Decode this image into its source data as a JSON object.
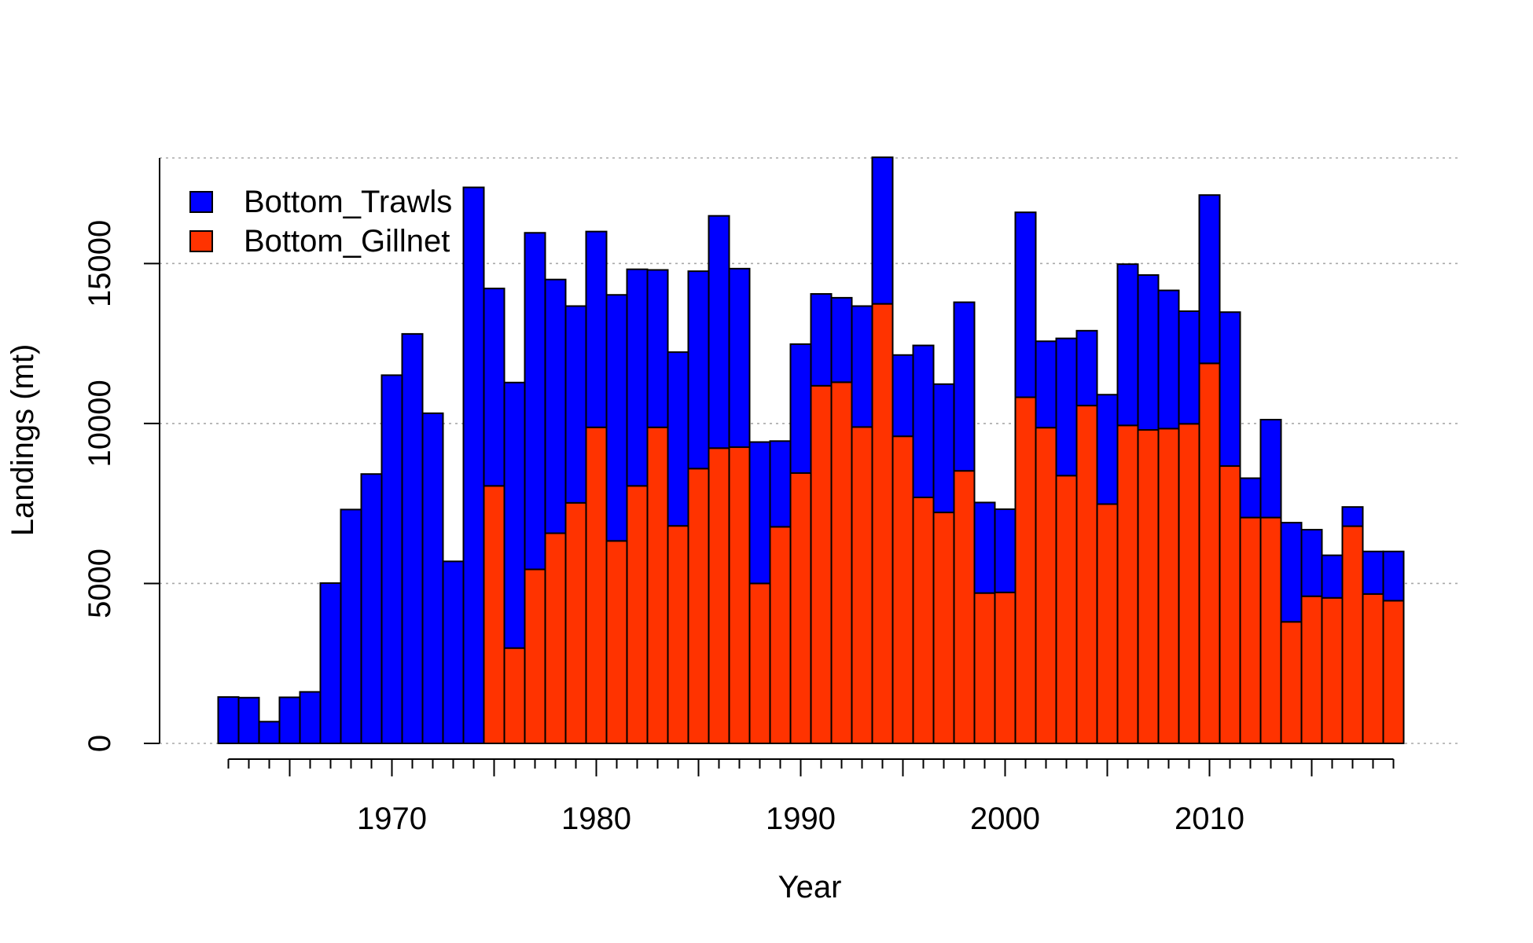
{
  "chart_data": {
    "type": "bar",
    "stacked": true,
    "xlabel": "Year",
    "ylabel": "Landings (mt)",
    "xlim": [
      1961.5,
      2019.5
    ],
    "ylim": [
      0,
      18300
    ],
    "yticks": [
      0,
      5000,
      10000,
      15000
    ],
    "xticks_labeled": [
      1970,
      1980,
      1990,
      2000,
      2010
    ],
    "grid": "horizontal dotted",
    "legend_position": "top-left",
    "x": [
      1962,
      1963,
      1964,
      1965,
      1966,
      1967,
      1968,
      1969,
      1970,
      1971,
      1972,
      1973,
      1974,
      1975,
      1976,
      1977,
      1978,
      1979,
      1980,
      1981,
      1982,
      1983,
      1984,
      1985,
      1986,
      1987,
      1988,
      1989,
      1990,
      1991,
      1992,
      1993,
      1994,
      1995,
      1996,
      1997,
      1998,
      1999,
      2000,
      2001,
      2002,
      2003,
      2004,
      2005,
      2006,
      2007,
      2008,
      2009,
      2010,
      2011,
      2012,
      2013,
      2014,
      2015,
      2016,
      2017,
      2018,
      2019
    ],
    "series": [
      {
        "name": "Bottom_Gillnet",
        "color": "#ff3300",
        "values": [
          0,
          0,
          0,
          0,
          0,
          0,
          0,
          0,
          0,
          0,
          0,
          0,
          0,
          8050,
          2980,
          5440,
          6570,
          7520,
          9880,
          6330,
          8050,
          9880,
          6800,
          8590,
          9230,
          9260,
          5000,
          6770,
          8450,
          11180,
          11290,
          9890,
          13740,
          9600,
          7690,
          7220,
          8520,
          4700,
          4720,
          10820,
          9870,
          8370,
          10560,
          7480,
          9940,
          9800,
          9840,
          9990,
          11880,
          8670,
          7060,
          7060,
          3800,
          4600,
          4550,
          6790,
          4670,
          4460
        ]
      },
      {
        "name": "Bottom_Trawls",
        "color": "#0000ff",
        "values": [
          1450,
          1430,
          680,
          1440,
          1610,
          5010,
          7310,
          8420,
          11510,
          12800,
          10320,
          5690,
          17380,
          6170,
          8300,
          10520,
          7930,
          6150,
          6120,
          7690,
          6770,
          4920,
          5430,
          6170,
          7260,
          5580,
          4420,
          2680,
          4030,
          2870,
          2640,
          3780,
          4580,
          2540,
          4750,
          4010,
          5270,
          2830,
          2600,
          5780,
          2700,
          4290,
          2340,
          3420,
          5040,
          4840,
          4320,
          3520,
          5260,
          4810,
          1230,
          3060,
          3100,
          2080,
          1330,
          600,
          1330,
          1540
        ]
      }
    ]
  }
}
